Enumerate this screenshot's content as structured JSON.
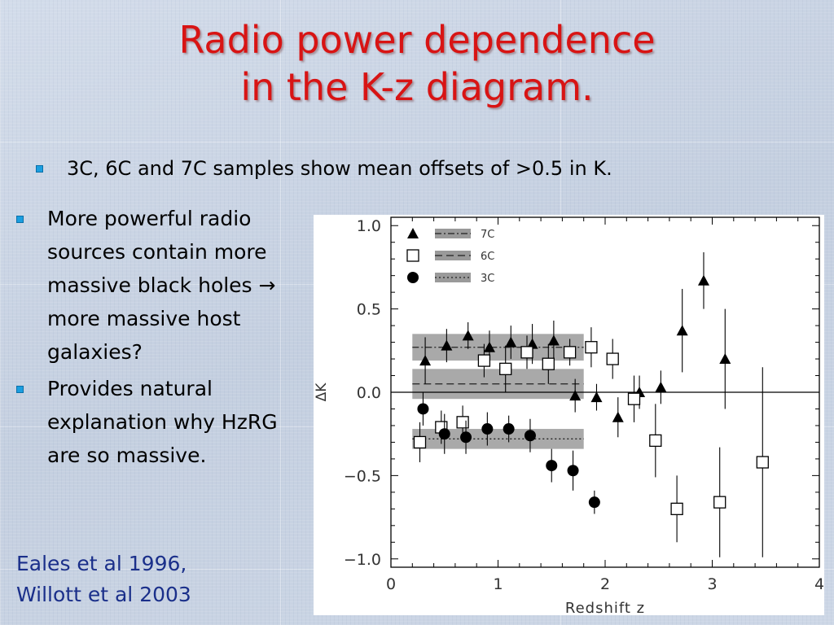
{
  "slide": {
    "title_line1": "Radio power dependence",
    "title_line2": "in the K-z diagram.",
    "top_bullet": "3C, 6C and 7C samples show mean offsets of >0.5 in K.",
    "left_bullets": [
      "More powerful radio sources contain more massive black holes → more massive host galaxies?",
      "Provides natural explanation why HzRG are so massive."
    ],
    "reference_line1": "Eales et al 1996,",
    "reference_line2": "Willott et al 2003"
  },
  "colors": {
    "title": "#d81414",
    "bullet": "#1a9ee0",
    "reference": "#1a2f8a",
    "background": "#c9d3e2"
  },
  "chart_data": {
    "type": "scatter",
    "xlabel": "Redshift z",
    "ylabel": "ΔK",
    "xlim": [
      0,
      4
    ],
    "ylim": [
      -1.05,
      1.05
    ],
    "xticks": [
      0,
      1,
      2,
      3,
      4
    ],
    "yticks": [
      -1.0,
      -0.5,
      0.0,
      0.5,
      1.0
    ],
    "ytick_labels": [
      "−1.0",
      "−0.5",
      "0.0",
      "0.5",
      "1.0"
    ],
    "zero_line": 0.0,
    "legend_position": "top-left",
    "series": [
      {
        "name": "7C",
        "marker": "filled-triangle",
        "mean": 0.27,
        "band_halfwidth": 0.08,
        "band_x": [
          0.2,
          1.8
        ],
        "mean_line": "dash-dot",
        "points": [
          {
            "x": 0.32,
            "y": 0.19,
            "err": 0.14
          },
          {
            "x": 0.52,
            "y": 0.28,
            "err": 0.1
          },
          {
            "x": 0.72,
            "y": 0.34,
            "err": 0.08
          },
          {
            "x": 0.92,
            "y": 0.27,
            "err": 0.1
          },
          {
            "x": 1.12,
            "y": 0.3,
            "err": 0.1
          },
          {
            "x": 1.32,
            "y": 0.29,
            "err": 0.12
          },
          {
            "x": 1.52,
            "y": 0.31,
            "err": 0.12
          },
          {
            "x": 1.72,
            "y": -0.02,
            "err": 0.1
          },
          {
            "x": 1.92,
            "y": -0.03,
            "err": 0.08
          },
          {
            "x": 2.12,
            "y": -0.15,
            "err": 0.12
          },
          {
            "x": 2.32,
            "y": 0.0,
            "err": 0.1
          },
          {
            "x": 2.52,
            "y": 0.03,
            "err": 0.1
          },
          {
            "x": 2.72,
            "y": 0.37,
            "err": 0.25
          },
          {
            "x": 2.92,
            "y": 0.67,
            "err": 0.17
          },
          {
            "x": 3.12,
            "y": 0.2,
            "err": 0.3
          }
        ]
      },
      {
        "name": "6C",
        "marker": "open-square",
        "mean": 0.05,
        "band_halfwidth": 0.09,
        "band_x": [
          0.2,
          1.8
        ],
        "mean_line": "dash",
        "points": [
          {
            "x": 0.27,
            "y": -0.3,
            "err": 0.12
          },
          {
            "x": 0.47,
            "y": -0.21,
            "err": 0.1
          },
          {
            "x": 0.67,
            "y": -0.18,
            "err": 0.1
          },
          {
            "x": 0.87,
            "y": 0.19,
            "err": 0.1
          },
          {
            "x": 1.07,
            "y": 0.14,
            "err": 0.14
          },
          {
            "x": 1.27,
            "y": 0.24,
            "err": 0.1
          },
          {
            "x": 1.47,
            "y": 0.17,
            "err": 0.12
          },
          {
            "x": 1.67,
            "y": 0.24,
            "err": 0.08
          },
          {
            "x": 1.87,
            "y": 0.27,
            "err": 0.12
          },
          {
            "x": 2.07,
            "y": 0.2,
            "err": 0.12
          },
          {
            "x": 2.27,
            "y": -0.04,
            "err": 0.14
          },
          {
            "x": 2.47,
            "y": -0.29,
            "err": 0.22
          },
          {
            "x": 2.67,
            "y": -0.7,
            "err": 0.2
          },
          {
            "x": 3.07,
            "y": -0.66,
            "err": 0.33
          },
          {
            "x": 3.47,
            "y": -0.42,
            "err": 0.57
          }
        ]
      },
      {
        "name": "3C",
        "marker": "filled-circle",
        "mean": -0.28,
        "band_halfwidth": 0.06,
        "band_x": [
          0.2,
          1.8
        ],
        "mean_line": "dot",
        "points": [
          {
            "x": 0.3,
            "y": -0.1,
            "err": 0.1
          },
          {
            "x": 0.5,
            "y": -0.25,
            "err": 0.12
          },
          {
            "x": 0.7,
            "y": -0.27,
            "err": 0.1
          },
          {
            "x": 0.9,
            "y": -0.22,
            "err": 0.1
          },
          {
            "x": 1.1,
            "y": -0.22,
            "err": 0.08
          },
          {
            "x": 1.3,
            "y": -0.26,
            "err": 0.1
          },
          {
            "x": 1.5,
            "y": -0.44,
            "err": 0.1
          },
          {
            "x": 1.7,
            "y": -0.47,
            "err": 0.12
          },
          {
            "x": 1.9,
            "y": -0.66,
            "err": 0.07
          }
        ]
      }
    ]
  }
}
